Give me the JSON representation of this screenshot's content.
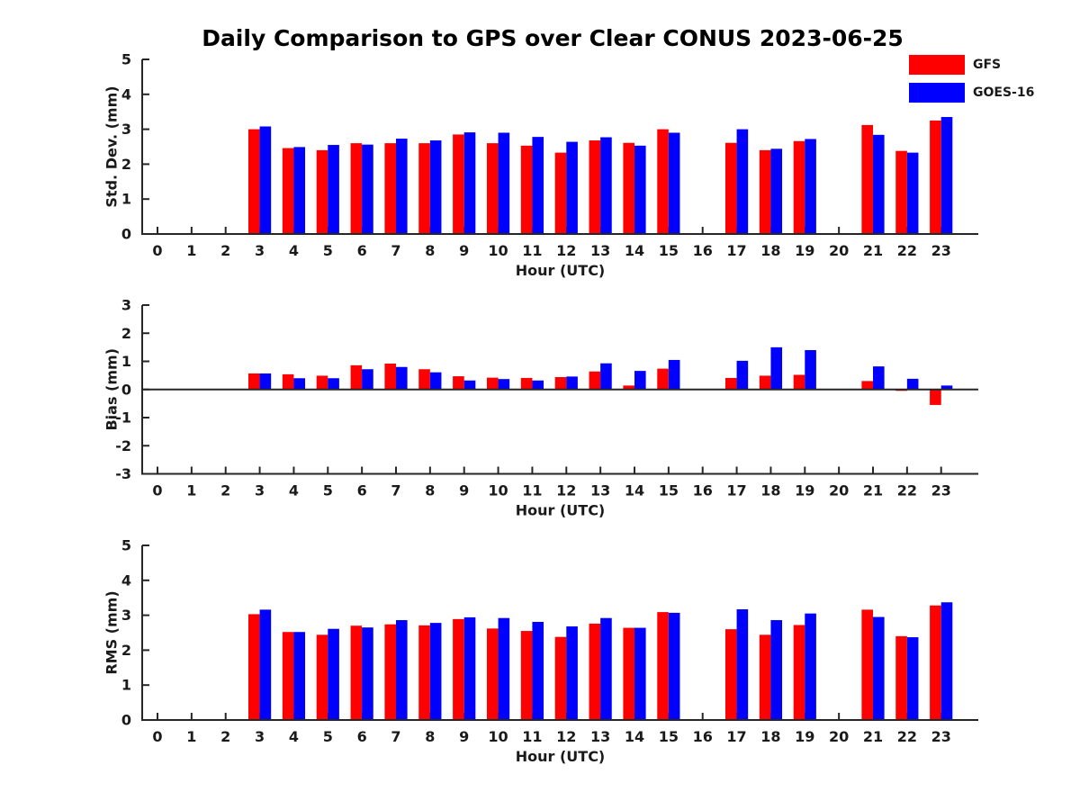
{
  "title": "Daily Comparison to GPS over Clear CONUS 2023-06-25",
  "legend": {
    "entries": [
      {
        "label": "GFS",
        "color": "#ff0000"
      },
      {
        "label": "GOES-16",
        "color": "#0000ff"
      }
    ]
  },
  "chart_data": [
    {
      "id": "std-dev",
      "type": "bar",
      "ylabel": "Std. Dev. (mm)",
      "xlabel": "Hour (UTC)",
      "ylim": [
        0,
        5
      ],
      "yticks": [
        0,
        1,
        2,
        3,
        4,
        5
      ],
      "zero_line": false,
      "grid": false,
      "legend_position": "top-right",
      "categories": [
        0,
        1,
        2,
        3,
        4,
        5,
        6,
        7,
        8,
        9,
        10,
        11,
        12,
        13,
        14,
        15,
        16,
        17,
        18,
        19,
        20,
        21,
        22,
        23
      ],
      "series": [
        {
          "name": "GFS",
          "color": "#ff0000",
          "values": [
            null,
            null,
            null,
            3.0,
            2.46,
            2.4,
            2.6,
            2.6,
            2.6,
            2.85,
            2.6,
            2.53,
            2.33,
            2.68,
            2.61,
            3.0,
            null,
            2.61,
            2.4,
            2.66,
            null,
            3.12,
            2.38,
            3.25
          ]
        },
        {
          "name": "GOES-16",
          "color": "#0000ff",
          "values": [
            null,
            null,
            null,
            3.08,
            2.49,
            2.55,
            2.56,
            2.73,
            2.68,
            2.91,
            2.9,
            2.78,
            2.64,
            2.77,
            2.53,
            2.9,
            null,
            3.0,
            2.44,
            2.72,
            null,
            2.84,
            2.33,
            3.35
          ]
        }
      ]
    },
    {
      "id": "bias",
      "type": "bar",
      "ylabel": "Bias (mm)",
      "xlabel": "Hour (UTC)",
      "ylim": [
        -3,
        3
      ],
      "yticks": [
        -3,
        -2,
        -1,
        0,
        1,
        2,
        3
      ],
      "zero_line": true,
      "grid": false,
      "categories": [
        0,
        1,
        2,
        3,
        4,
        5,
        6,
        7,
        8,
        9,
        10,
        11,
        12,
        13,
        14,
        15,
        16,
        17,
        18,
        19,
        20,
        21,
        22,
        23
      ],
      "series": [
        {
          "name": "GFS",
          "color": "#ff0000",
          "values": [
            null,
            null,
            null,
            0.57,
            0.54,
            0.49,
            0.86,
            0.92,
            0.72,
            0.47,
            0.42,
            0.41,
            0.44,
            0.64,
            0.14,
            0.74,
            null,
            0.41,
            0.49,
            0.52,
            null,
            0.3,
            -0.05,
            -0.55
          ]
        },
        {
          "name": "GOES-16",
          "color": "#0000ff",
          "values": [
            null,
            null,
            null,
            0.57,
            0.4,
            0.4,
            0.72,
            0.8,
            0.61,
            0.32,
            0.37,
            0.32,
            0.46,
            0.93,
            0.66,
            1.05,
            null,
            1.02,
            1.5,
            1.4,
            null,
            0.82,
            0.38,
            0.14
          ]
        }
      ]
    },
    {
      "id": "rms",
      "type": "bar",
      "ylabel": "RMS (mm)",
      "xlabel": "Hour (UTC)",
      "ylim": [
        0,
        5
      ],
      "yticks": [
        0,
        1,
        2,
        3,
        4,
        5
      ],
      "zero_line": false,
      "grid": false,
      "categories": [
        0,
        1,
        2,
        3,
        4,
        5,
        6,
        7,
        8,
        9,
        10,
        11,
        12,
        13,
        14,
        15,
        16,
        17,
        18,
        19,
        20,
        21,
        22,
        23
      ],
      "series": [
        {
          "name": "GFS",
          "color": "#ff0000",
          "values": [
            null,
            null,
            null,
            3.03,
            2.52,
            2.44,
            2.7,
            2.74,
            2.71,
            2.89,
            2.62,
            2.55,
            2.38,
            2.76,
            2.64,
            3.09,
            null,
            2.6,
            2.44,
            2.72,
            null,
            3.16,
            2.4,
            3.28
          ]
        },
        {
          "name": "GOES-16",
          "color": "#0000ff",
          "values": [
            null,
            null,
            null,
            3.16,
            2.52,
            2.61,
            2.65,
            2.86,
            2.78,
            2.94,
            2.92,
            2.81,
            2.68,
            2.92,
            2.64,
            3.07,
            null,
            3.17,
            2.86,
            3.05,
            null,
            2.95,
            2.37,
            3.37
          ]
        }
      ]
    }
  ]
}
